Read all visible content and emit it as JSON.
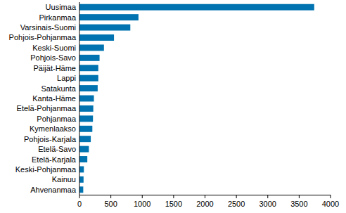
{
  "chart_data": {
    "type": "bar",
    "orientation": "horizontal",
    "categories": [
      "Uusimaa",
      "Pirkanmaa",
      "Varsinais-Suomi",
      "Pohjois-Pohjanmaa",
      "Keski-Suomi",
      "Pohjois-Savo",
      "Päijät-Häme",
      "Lappi",
      "Satakunta",
      "Kanta-Häme",
      "Etelä-Pohjanmaa",
      "Pohjanmaa",
      "Kymenlaakso",
      "Pohjois-Karjala",
      "Etelä-Savo",
      "Etelä-Karjala",
      "Keski-Pohjanmaa",
      "Kainuu",
      "Ahvenanmaa"
    ],
    "values": [
      3740,
      940,
      810,
      550,
      390,
      320,
      300,
      300,
      290,
      230,
      220,
      215,
      205,
      180,
      150,
      125,
      70,
      65,
      60
    ],
    "color": "#0073b0",
    "xlim": [
      0,
      4000
    ],
    "xticks": [
      0,
      500,
      1000,
      1500,
      2000,
      2500,
      3000,
      3500,
      4000
    ],
    "grid": false
  }
}
